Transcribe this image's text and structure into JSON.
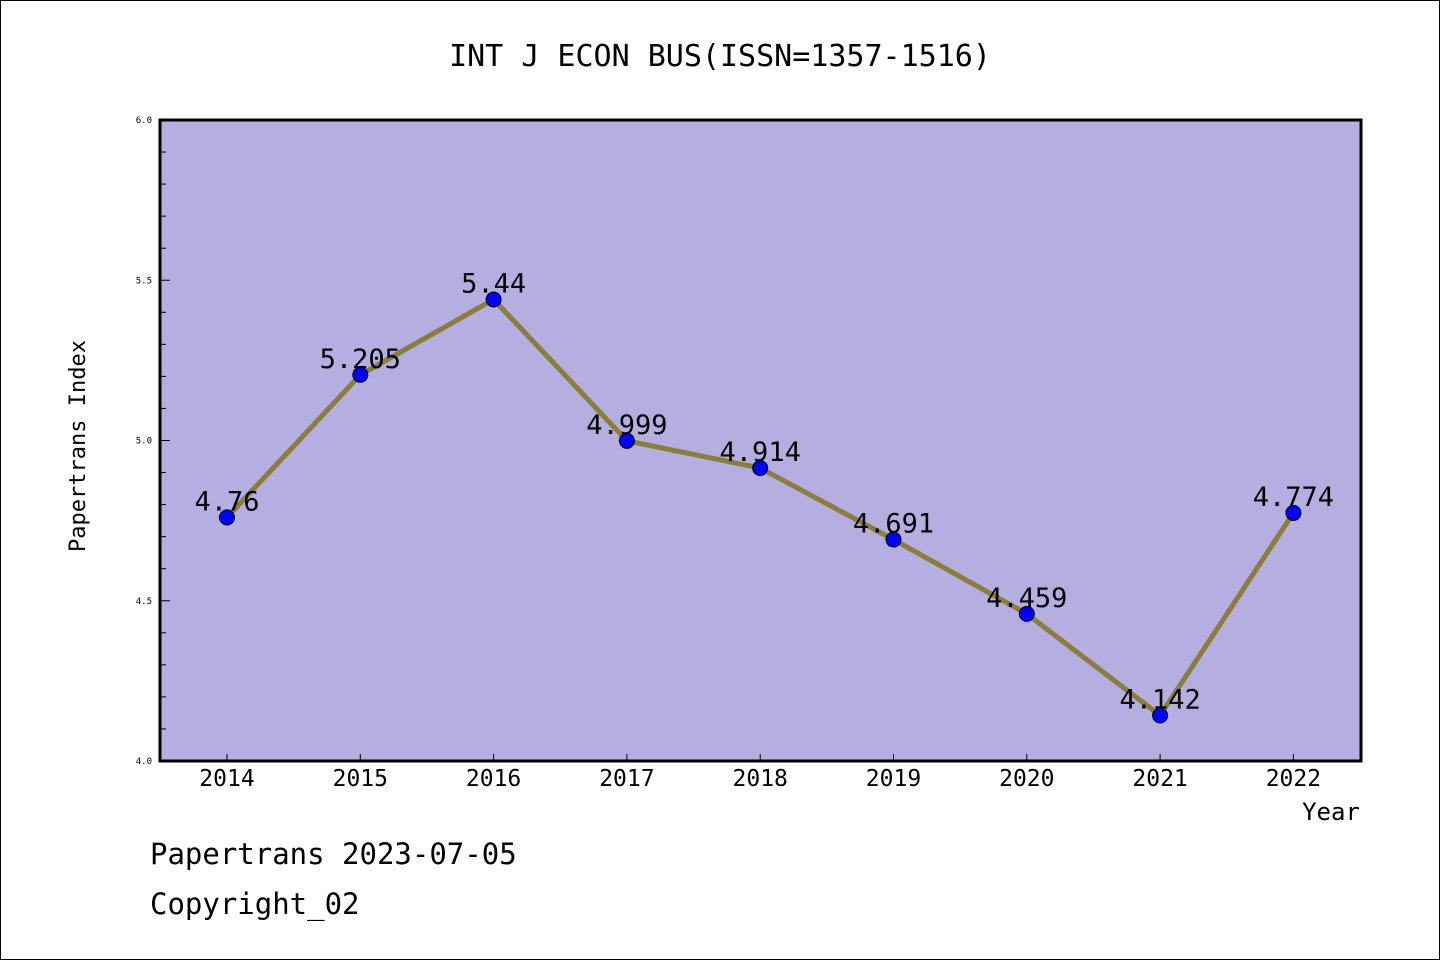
{
  "chart_data": {
    "type": "line",
    "title": "INT J ECON BUS(ISSN=1357-1516)",
    "xlabel": "Year",
    "ylabel": "Papertrans Index",
    "x": [
      "2014",
      "2015",
      "2016",
      "2017",
      "2018",
      "2019",
      "2020",
      "2021",
      "2022"
    ],
    "series": [
      {
        "values": [
          4.76,
          5.205,
          5.44,
          4.999,
          4.914,
          4.691,
          4.459,
          4.142,
          4.774
        ],
        "labels": [
          "4.76",
          "5.205",
          "5.44",
          "4.999",
          "4.914",
          "4.691",
          "4.459",
          "4.142",
          "4.774"
        ]
      }
    ],
    "ylim": [
      4.0,
      6.0
    ],
    "yticks": [
      "4.0",
      "4.5",
      "5.0",
      "5.5",
      "6.0"
    ],
    "grid": false,
    "colors": {
      "plot_background": "#b5aee1",
      "line": "#8b7d3a",
      "marker": "#0000ff"
    }
  },
  "footer": {
    "line1": "Papertrans 2023-07-05",
    "line2": "Copyright_02"
  }
}
